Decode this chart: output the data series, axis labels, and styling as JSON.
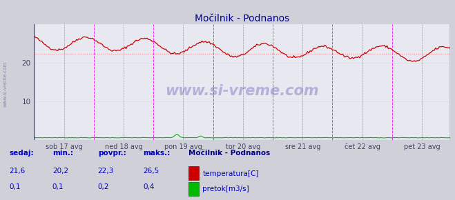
{
  "title": "Močilnik - Podnanos",
  "bg_color": "#d0d0d8",
  "plot_bg_color": "#e8e8f0",
  "grid_color": "#ccccdd",
  "temp_color": "#cc0000",
  "flow_color": "#00bb00",
  "avg_line_color": "#ff8888",
  "watermark": "www.si-vreme.com",
  "xlabels": [
    "sob 17 avg",
    "ned 18 avg",
    "pon 19 avg",
    "tor 20 avg",
    "sre 21 avg",
    "čet 22 avg",
    "pet 23 avg"
  ],
  "ylim": [
    0,
    30
  ],
  "yticks": [
    10,
    20
  ],
  "avg_temp": 22.3,
  "sedaj_temp": 21.6,
  "min_temp": 20.2,
  "povpr_temp": 22.3,
  "maks_temp": 26.5,
  "sedaj_flow": 0.1,
  "min_flow": 0.1,
  "povpr_flow": 0.2,
  "maks_flow": 0.4,
  "n_points": 336,
  "temp_seed": 42,
  "flow_seed": 7
}
